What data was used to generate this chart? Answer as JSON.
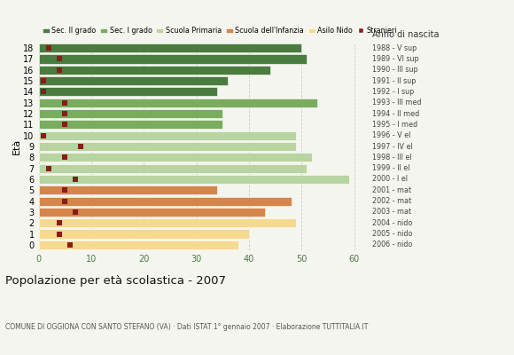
{
  "ages": [
    18,
    17,
    16,
    15,
    14,
    13,
    12,
    11,
    10,
    9,
    8,
    7,
    6,
    5,
    4,
    3,
    2,
    1,
    0
  ],
  "bar_values": [
    50,
    51,
    44,
    36,
    34,
    53,
    35,
    35,
    49,
    49,
    52,
    51,
    59,
    34,
    48,
    43,
    49,
    40,
    38
  ],
  "bar_colors": [
    "#4a7c3f",
    "#4a7c3f",
    "#4a7c3f",
    "#4a7c3f",
    "#4a7c3f",
    "#7aac5e",
    "#7aac5e",
    "#7aac5e",
    "#b8d4a0",
    "#b8d4a0",
    "#b8d4a0",
    "#b8d4a0",
    "#b8d4a0",
    "#d4864a",
    "#d4864a",
    "#d4864a",
    "#f5d98e",
    "#f5d98e",
    "#f5d98e"
  ],
  "stranieri_values": [
    2,
    4,
    4,
    1,
    1,
    5,
    5,
    5,
    1,
    8,
    5,
    2,
    7,
    5,
    5,
    7,
    4,
    4,
    6
  ],
  "right_labels": [
    "1988 - V sup",
    "1989 - VI sup",
    "1990 - III sup",
    "1991 - II sup",
    "1992 - I sup",
    "1993 - III med",
    "1994 - II med",
    "1995 - I med",
    "1996 - V el",
    "1997 - IV el",
    "1998 - III el",
    "1999 - II el",
    "2000 - I el",
    "2001 - mat",
    "2002 - mat",
    "2003 - mat",
    "2004 - nido",
    "2005 - nido",
    "2006 - nido"
  ],
  "legend_labels": [
    "Sec. II grado",
    "Sec. I grado",
    "Scuola Primaria",
    "Scuola dell'Infanzia",
    "Asilo Nido",
    "Stranieri"
  ],
  "legend_colors": [
    "#4a7c3f",
    "#7aac5e",
    "#b8d4a0",
    "#d4864a",
    "#f5d98e",
    "#8b1a1a"
  ],
  "ylabel": "Età",
  "title": "Popolazione per età scolastica - 2007",
  "subtitle": "COMUNE DI OGGIONA CON SANTO STEFANO (VA) · Dati ISTAT 1° gennaio 2007 · Elaborazione TUTTITALIA.IT",
  "anno_label": "Anno di nascita",
  "xlim": [
    0,
    63
  ],
  "ylim": [
    -0.5,
    18.5
  ],
  "bg_color": "#f5f5f0",
  "bar_height": 0.82,
  "stranieri_color": "#8b1a1a",
  "stranieri_size": 4.5
}
